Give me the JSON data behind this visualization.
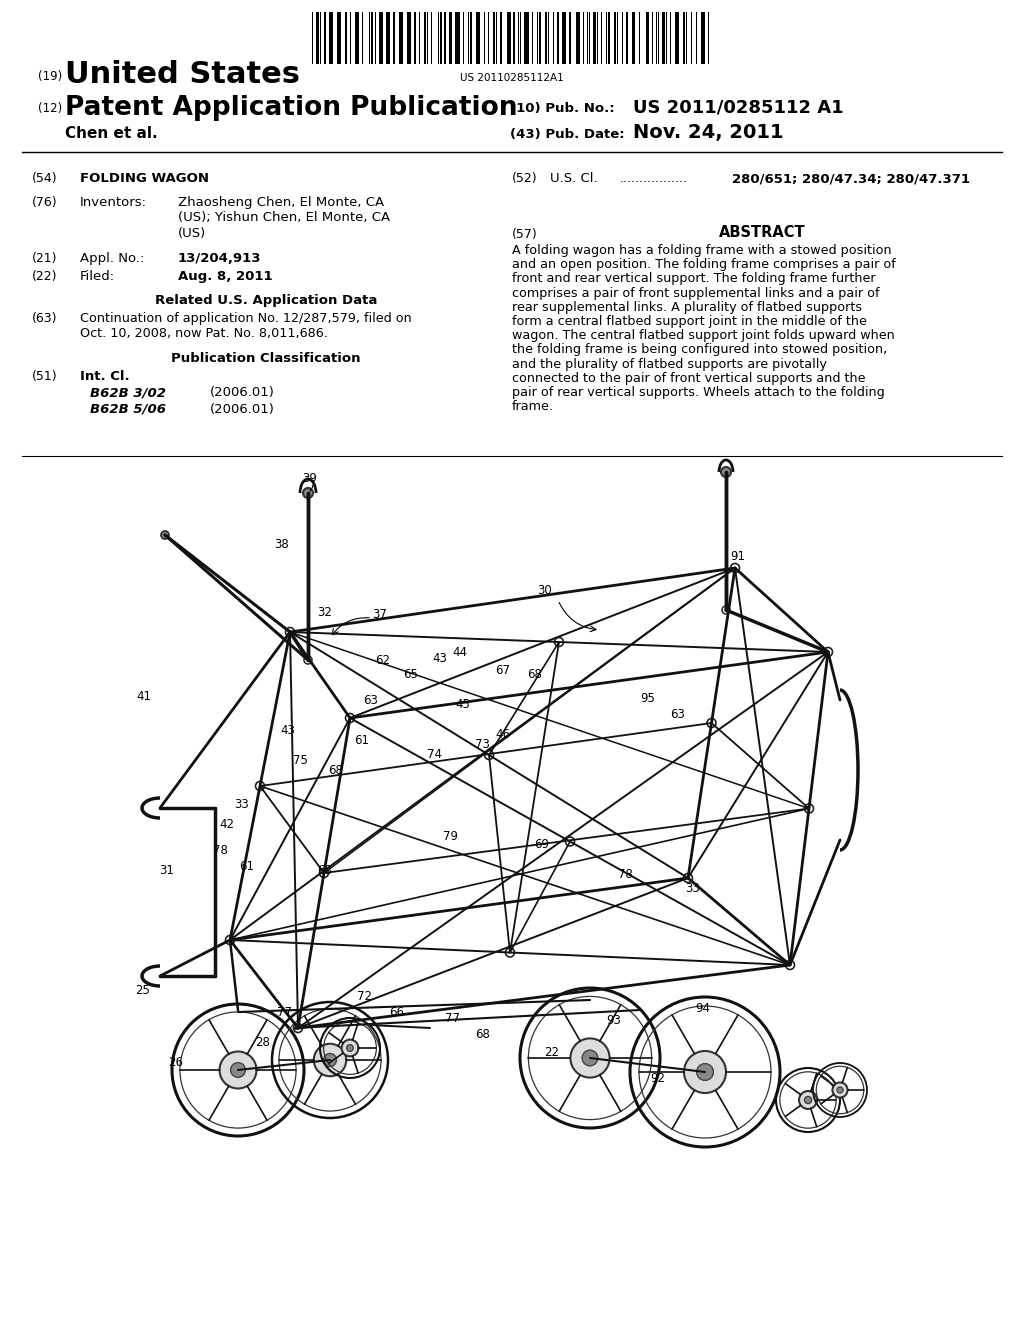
{
  "bg_color": "#ffffff",
  "barcode_text": "US 20110285112A1",
  "title_field": "FOLDING WAGON",
  "inventors_value_line1": "Zhaosheng Chen, El Monte, CA",
  "inventors_value_line2": "(US); Yishun Chen, El Monte, CA",
  "inventors_value_line3": "(US)",
  "appl_value": "13/204,913",
  "filed_value": "Aug. 8, 2011",
  "related_text_line1": "Continuation of application No. 12/287,579, filed on",
  "related_text_line2": "Oct. 10, 2008, now Pat. No. 8,011,686.",
  "int_cl_code1": "B62B 3/02",
  "int_cl_year1": "(2006.01)",
  "int_cl_code2": "B62B 5/06",
  "int_cl_year2": "(2006.01)",
  "us_cl_value": "280/651; 280/47.34; 280/47.371",
  "abstract_text": "A folding wagon has a folding frame with a stowed position and an open position. The folding frame comprises a pair of front and rear vertical support. The folding frame further comprises a pair of front supplemental links and a pair of rear supplemental links. A plurality of flatbed supports form a central flatbed support joint in the middle of the wagon. The central flatbed support joint folds upward when the folding frame is being configured into stowed position, and the plurality of flatbed supports are pivotally connected to the pair of front vertical supports and the pair of rear vertical supports. Wheels attach to the folding frame.",
  "pub_no": "US 2011/0285112 A1",
  "pub_date": "Nov. 24, 2011",
  "inventors_label": "Chen et al."
}
